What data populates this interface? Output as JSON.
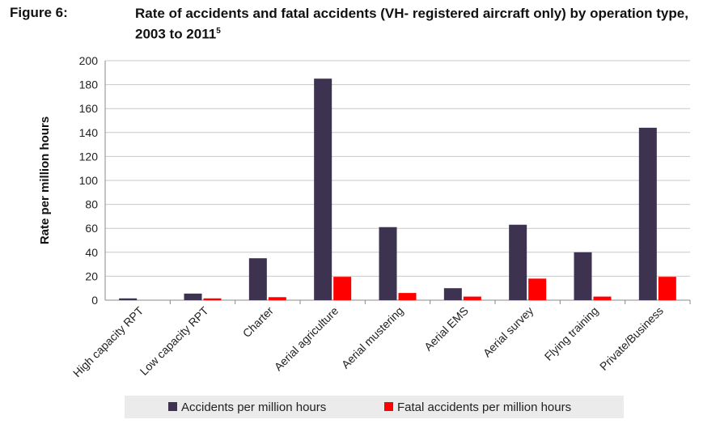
{
  "figure_label": "Figure 6:",
  "title_main": "Rate of accidents and fatal accidents (VH- registered aircraft only) by operation type, 2003 to 2011",
  "title_footnote": "5",
  "chart_data": {
    "type": "bar",
    "title": "Rate of accidents and fatal accidents (VH- registered aircraft only) by operation type, 2003 to 2011",
    "xlabel": "",
    "ylabel": "Rate per million hours",
    "ylim": [
      0,
      200
    ],
    "yticks": [
      0,
      20,
      40,
      60,
      80,
      100,
      120,
      140,
      160,
      180,
      200
    ],
    "grid": true,
    "legend_position": "bottom",
    "categories": [
      "High capacity RPT",
      "Low capacity RPT",
      "Charter",
      "Aerial agriculture",
      "Aerial mustering",
      "Aerial EMS",
      "Aerial survey",
      "Flying training",
      "Private/Business"
    ],
    "series": [
      {
        "name": "Accidents per million hours",
        "color": "#3d3350",
        "values": [
          1.5,
          5.5,
          35,
          185,
          61,
          10,
          63,
          40,
          144
        ]
      },
      {
        "name": "Fatal accidents per million hours",
        "color": "#ff0000",
        "values": [
          0,
          1.5,
          2.5,
          19.5,
          6,
          3,
          18,
          3,
          19.5
        ]
      }
    ]
  }
}
